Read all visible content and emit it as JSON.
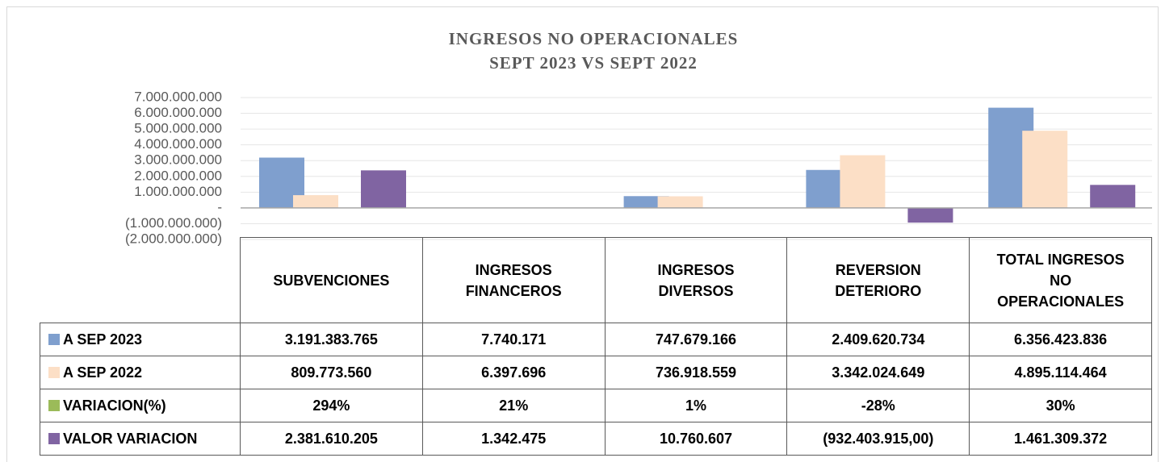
{
  "chart_data": {
    "type": "bar",
    "title": "INGRESOS NO OPERACIONALES",
    "subtitle": "SEPT 2023 VS SEPT 2022",
    "categories": [
      "SUBVENCIONES",
      "INGRESOS FINANCEROS",
      "INGRESOS DIVERSOS",
      "REVERSION DETERIORO",
      "TOTAL INGRESOS NO OPERACIONALES"
    ],
    "series": [
      {
        "name": "A SEP 2023",
        "color": "#7f9fce",
        "values": [
          3191383765,
          7740171,
          747679166,
          2409620734,
          6356423836
        ],
        "value_labels": [
          "3.191.383.765",
          "7.740.171",
          "747.679.166",
          "2.409.620.734",
          "6.356.423.836"
        ]
      },
      {
        "name": "A SEP 2022",
        "color": "#fcdfc6",
        "values": [
          809773560,
          6397696,
          736918559,
          3342024649,
          4895114464
        ],
        "value_labels": [
          "809.773.560",
          "6.397.696",
          "736.918.559",
          "3.342.024.649",
          "4.895.114.464"
        ]
      },
      {
        "name": "VARIACION(%)",
        "color": "#9bbb59",
        "values": [
          294,
          21,
          1,
          -28,
          30
        ],
        "value_labels": [
          "294%",
          "21%",
          "1%",
          "-28%",
          "30%"
        ]
      },
      {
        "name": "VALOR VARIACION",
        "color": "#8064a2",
        "values": [
          2381610205,
          1342475,
          10760607,
          -932403915,
          1461309372
        ],
        "value_labels": [
          "2.381.610.205",
          "1.342.475",
          "10.760.607",
          "(932.403.915,00)",
          "1.461.309.372"
        ]
      }
    ],
    "ylim": [
      -2000000000,
      7000000000
    ],
    "yticks": [
      {
        "value": -2000000000,
        "label": "(2.000.000.000)"
      },
      {
        "value": -1000000000,
        "label": "(1.000.000.000)"
      },
      {
        "value": 0,
        "label": "-"
      },
      {
        "value": 1000000000,
        "label": "1.000.000.000"
      },
      {
        "value": 2000000000,
        "label": "2.000.000.000"
      },
      {
        "value": 3000000000,
        "label": "3.000.000.000"
      },
      {
        "value": 4000000000,
        "label": "4.000.000.000"
      },
      {
        "value": 5000000000,
        "label": "5.000.000.000"
      },
      {
        "value": 6000000000,
        "label": "6.000.000.000"
      },
      {
        "value": 7000000000,
        "label": "7.000.000.000"
      }
    ],
    "grid": true
  }
}
